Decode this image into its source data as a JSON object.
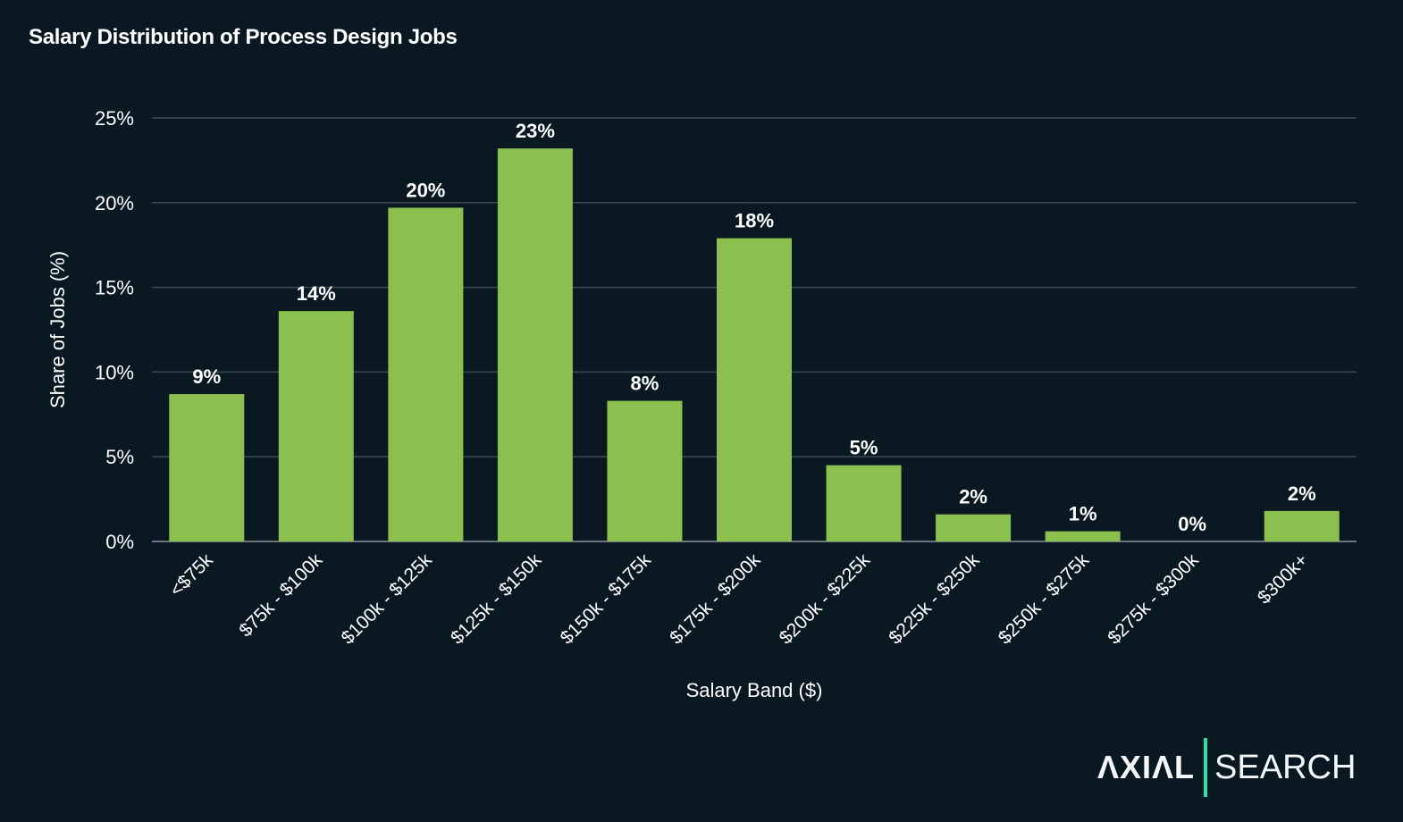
{
  "chart_data": {
    "type": "bar",
    "title": "Salary Distribution of Process Design Jobs",
    "xlabel": "Salary Band ($)",
    "ylabel": "Share of Jobs (%)",
    "ylim": [
      0,
      25
    ],
    "yticks": [
      0,
      5,
      10,
      15,
      20,
      25
    ],
    "ytick_labels": [
      "0%",
      "5%",
      "10%",
      "15%",
      "20%",
      "25%"
    ],
    "grid": "horizontal",
    "categories": [
      "<$75k",
      "$75k - $100k",
      "$100k - $125k",
      "$125k - $150k",
      "$150k - $175k",
      "$175k - $200k",
      "$200k - $225k",
      "$225k - $250k",
      "$250k - $275k",
      "$275k - $300k",
      "$300k+"
    ],
    "values": [
      8.7,
      13.6,
      19.7,
      23.2,
      8.3,
      17.9,
      4.5,
      1.6,
      0.6,
      0.0,
      1.8
    ],
    "data_labels": [
      "9%",
      "14%",
      "20%",
      "23%",
      "8%",
      "18%",
      "5%",
      "2%",
      "1%",
      "0%",
      "2%"
    ],
    "colors": {
      "bar": "#8bc04f",
      "background": "#0a1822",
      "grid": "#3b4a55",
      "text": "#ffffff"
    }
  },
  "logo": {
    "brand": "ΛXIΛL",
    "product": "SEARCH",
    "accent": "#2ee0a8"
  }
}
